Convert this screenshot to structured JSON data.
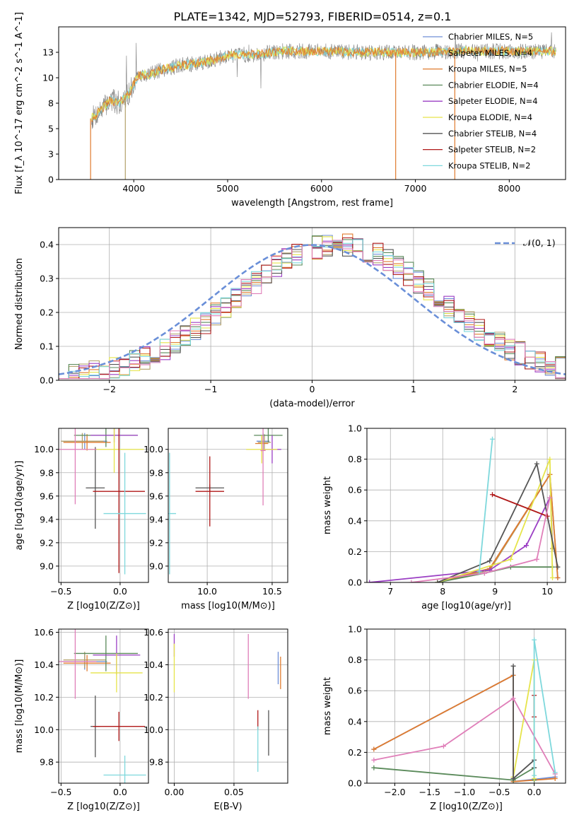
{
  "figure_title": "PLATE=1342, MJD=52793, FIBERID=0514, z=0.1",
  "colors": {
    "Chabrier MILES": "#6f8fd6",
    "Salpeter MILES": "#b2a06a",
    "Kroupa MILES": "#e07b2e",
    "Chabrier ELODIE": "#5a8a5a",
    "Salpeter ELODIE": "#9b3fc4",
    "Kroupa ELODIE": "#e6e44a",
    "Chabrier STELIB": "#555555",
    "Salpeter STELIB": "#b01818",
    "Kroupa STELIB": "#7ed8dc",
    "data": "#7f7f7f",
    "normal": "#6a8fd8",
    "pinkish": "#e07fb9"
  },
  "chart_data": [
    {
      "id": "spectrum",
      "type": "line",
      "xlabel": "wavelength [Angstrom, rest frame]",
      "ylabel": "Flux [f_λ 10^-17 erg cm^-2 s^-1 A^-1]",
      "xlim": [
        3200,
        8600
      ],
      "ylim": [
        0,
        15
      ],
      "xticks": [
        4000,
        5000,
        6000,
        7000,
        8000
      ],
      "yticks": [
        0.0,
        2.5,
        5.0,
        7.5,
        10.0,
        12.5
      ],
      "grid": false,
      "legend_position": "right",
      "envelope": {
        "x": [
          3550,
          3650,
          3750,
          3850,
          3950,
          4050,
          4150,
          4300,
          4500,
          4800,
          5000,
          5300,
          5600,
          6000,
          6500,
          7000,
          7500,
          8000,
          8500
        ],
        "y": [
          6.0,
          6.8,
          7.8,
          7.5,
          8.5,
          10.2,
          10.3,
          10.8,
          11.2,
          11.6,
          12.2,
          12.3,
          12.6,
          12.6,
          12.5,
          12.5,
          12.6,
          12.6,
          12.6
        ]
      },
      "legend": [
        {
          "name": "Chabrier MILES, N_SSP=5",
          "key": "Chabrier MILES"
        },
        {
          "name": "Salpeter MILES, N_SSP=4",
          "key": "Salpeter MILES"
        },
        {
          "name": "Kroupa MILES, N_SSP=5",
          "key": "Kroupa MILES"
        },
        {
          "name": "Chabrier ELODIE, N_SSP=4",
          "key": "Chabrier ELODIE"
        },
        {
          "name": "Salpeter ELODIE, N_SSP=4",
          "key": "Salpeter ELODIE"
        },
        {
          "name": "Kroupa ELODIE, N_SSP=4",
          "key": "Kroupa ELODIE"
        },
        {
          "name": "Chabrier STELIB, N_SSP=4",
          "key": "Chabrier STELIB"
        },
        {
          "name": "Salpeter STELIB, N_SSP=2",
          "key": "Salpeter STELIB"
        },
        {
          "name": "Kroupa STELIB, N_SSP=2",
          "key": "Kroupa STELIB"
        }
      ]
    },
    {
      "id": "residuals",
      "type": "line",
      "xlabel": "(data-model)/error",
      "ylabel": "Normed distribution",
      "xlim": [
        -2.5,
        2.5
      ],
      "ylim": [
        0,
        0.45
      ],
      "xticks": [
        -2,
        -1,
        0,
        1,
        2
      ],
      "yticks": [
        0.0,
        0.1,
        0.2,
        0.3,
        0.4
      ],
      "grid": true,
      "legend_position": "top-right",
      "legend": [
        {
          "name": "𝒩(0, 1)",
          "key": "normal"
        }
      ],
      "bin_width": 0.1
    },
    {
      "id": "age_vs_Z",
      "type": "scatter",
      "xlabel": "Z [log10(Z/Z⊙)]",
      "ylabel": "age  [log10(age/yr)]",
      "xlim": [
        -0.52,
        0.24
      ],
      "ylim": [
        8.86,
        10.18
      ],
      "xticks": [
        -0.5,
        0.0
      ],
      "yticks": [
        9.0,
        9.2,
        9.4,
        9.6,
        9.8,
        10.0
      ],
      "grid": true,
      "points": [
        {
          "key": "Chabrier MILES",
          "x": -0.3,
          "y": 10.07,
          "xerr": 0.19,
          "yerr": 0.07
        },
        {
          "key": "Salpeter MILES",
          "x": -0.32,
          "y": 10.07,
          "xerr": 0.18,
          "yerr": 0.07
        },
        {
          "key": "Kroupa MILES",
          "x": -0.28,
          "y": 10.06,
          "xerr": 0.2,
          "yerr": 0.07
        },
        {
          "key": "Chabrier ELODIE",
          "x": -0.12,
          "y": 10.12,
          "xerr": 0.27,
          "yerr": 0.1
        },
        {
          "key": "Salpeter ELODIE",
          "x": -0.05,
          "y": 10.12,
          "xerr": 0.2,
          "yerr": 0.06
        },
        {
          "key": "Kroupa ELODIE",
          "x": -0.05,
          "y": 10.0,
          "xerr": 0.25,
          "yerr": 0.2
        },
        {
          "key": "Chabrier STELIB",
          "x": -0.21,
          "y": 9.67,
          "xerr": 0.08,
          "yerr": 0.35
        },
        {
          "key": "Salpeter STELIB",
          "x": -0.01,
          "y": 9.64,
          "xerr": 0.22,
          "yerr": 0.7
        },
        {
          "key": "pinkish",
          "x": -0.38,
          "y": 10.0,
          "xerr": 0.18,
          "yerr": 0.47
        },
        {
          "key": "Kroupa STELIB",
          "x": 0.04,
          "y": 9.45,
          "xerr": 0.18,
          "yerr": 0.52
        }
      ]
    },
    {
      "id": "age_vs_mass",
      "type": "scatter",
      "xlabel": "mass [log10(M/M⊙)]",
      "ylabel": "",
      "xlim": [
        9.7,
        10.62
      ],
      "ylim": [
        8.86,
        10.18
      ],
      "xticks": [
        10.0,
        10.5
      ],
      "yticks": [
        9.0,
        9.2,
        9.4,
        9.6,
        9.8,
        10.0
      ],
      "grid": true,
      "points": [
        {
          "key": "Chabrier MILES",
          "x": 10.43,
          "y": 10.07,
          "xerr": 0.05,
          "yerr": 0.07
        },
        {
          "key": "Salpeter MILES",
          "x": 10.44,
          "y": 10.06,
          "xerr": 0.05,
          "yerr": 0.07
        },
        {
          "key": "Kroupa MILES",
          "x": 10.42,
          "y": 10.05,
          "xerr": 0.05,
          "yerr": 0.07
        },
        {
          "key": "Chabrier ELODIE",
          "x": 10.47,
          "y": 10.12,
          "xerr": 0.11,
          "yerr": 0.06
        },
        {
          "key": "Salpeter ELODIE",
          "x": 10.5,
          "y": 10.0,
          "xerr": 0.07,
          "yerr": 0.12
        },
        {
          "key": "Kroupa ELODIE",
          "x": 10.42,
          "y": 10.0,
          "xerr": 0.12,
          "yerr": 0.12
        },
        {
          "key": "Chabrier STELIB",
          "x": 10.02,
          "y": 9.67,
          "xerr": 0.11,
          "yerr": 0.03
        },
        {
          "key": "Salpeter STELIB",
          "x": 10.02,
          "y": 9.64,
          "xerr": 0.11,
          "yerr": 0.3
        },
        {
          "key": "pinkish",
          "x": 10.43,
          "y": 9.99,
          "xerr": 0.02,
          "yerr": 0.47
        },
        {
          "key": "Kroupa STELIB",
          "x": 9.71,
          "y": 9.45,
          "xerr": 0.05,
          "yerr": 0.52
        }
      ]
    },
    {
      "id": "mass_weight_vs_age",
      "type": "line",
      "xlabel": "age  [log10(age/yr)]",
      "ylabel": "mass weight",
      "xlim": [
        6.55,
        10.35
      ],
      "ylim": [
        0,
        1.0
      ],
      "xticks": [
        7,
        8,
        9,
        10
      ],
      "yticks": [
        0.0,
        0.2,
        0.4,
        0.6,
        0.8,
        1.0
      ],
      "grid": true,
      "series": [
        {
          "key": "Chabrier MILES",
          "x": [
            7.9,
            8.9,
            10.05,
            10.2
          ],
          "y": [
            0.0,
            0.09,
            0.7,
            0.03
          ]
        },
        {
          "key": "Salpeter MILES",
          "x": [
            7.9,
            8.9,
            10.05,
            10.1
          ],
          "y": [
            0.0,
            0.08,
            0.7,
            0.22
          ]
        },
        {
          "key": "Kroupa MILES",
          "x": [
            7.9,
            8.9,
            10.05,
            10.2
          ],
          "y": [
            0.0,
            0.09,
            0.7,
            0.03
          ]
        },
        {
          "key": "Chabrier ELODIE",
          "x": [
            7.9,
            8.8,
            9.3,
            10.1
          ],
          "y": [
            0.0,
            0.06,
            0.1,
            0.1
          ]
        },
        {
          "key": "Salpeter ELODIE",
          "x": [
            6.6,
            8.9,
            9.6,
            10.05
          ],
          "y": [
            0.0,
            0.08,
            0.24,
            0.55
          ]
        },
        {
          "key": "Kroupa ELODIE",
          "x": [
            7.9,
            9.3,
            10.05,
            10.1
          ],
          "y": [
            0.0,
            0.15,
            0.8,
            0.03
          ]
        },
        {
          "key": "Chabrier STELIB",
          "x": [
            7.9,
            8.9,
            9.8,
            10.2
          ],
          "y": [
            0.0,
            0.14,
            0.77,
            0.1
          ]
        },
        {
          "key": "Salpeter STELIB",
          "x": [
            8.95,
            10.0
          ],
          "y": [
            0.57,
            0.43
          ]
        },
        {
          "key": "pinkish",
          "x": [
            7.4,
            8.8,
            9.8,
            10.05
          ],
          "y": [
            0.0,
            0.06,
            0.15,
            0.55
          ]
        },
        {
          "key": "Kroupa STELIB",
          "x": [
            8.7,
            8.95
          ],
          "y": [
            0.07,
            0.93
          ]
        }
      ]
    },
    {
      "id": "mass_vs_Z",
      "type": "scatter",
      "xlabel": "Z [log10(Z/Z⊙)]",
      "ylabel": "mass [log10(M/M⊙)]",
      "xlim": [
        -0.52,
        0.24
      ],
      "ylim": [
        9.67,
        10.62
      ],
      "xticks": [
        -0.5,
        0.0
      ],
      "yticks": [
        9.8,
        10.0,
        10.2,
        10.4,
        10.6
      ],
      "grid": true,
      "points": [
        {
          "key": "Chabrier MILES",
          "x": -0.3,
          "y": 10.42,
          "xerr": 0.19,
          "yerr": 0.05
        },
        {
          "key": "Salpeter MILES",
          "x": -0.3,
          "y": 10.43,
          "xerr": 0.18,
          "yerr": 0.05
        },
        {
          "key": "Kroupa MILES",
          "x": -0.28,
          "y": 10.41,
          "xerr": 0.2,
          "yerr": 0.05
        },
        {
          "key": "Chabrier ELODIE",
          "x": -0.12,
          "y": 10.47,
          "xerr": 0.27,
          "yerr": 0.11
        },
        {
          "key": "Salpeter ELODIE",
          "x": -0.03,
          "y": 10.46,
          "xerr": 0.2,
          "yerr": 0.12
        },
        {
          "key": "Kroupa ELODIE",
          "x": -0.03,
          "y": 10.35,
          "xerr": 0.22,
          "yerr": 0.12
        },
        {
          "key": "Chabrier STELIB",
          "x": -0.21,
          "y": 10.02,
          "xerr": 0.04,
          "yerr": 0.19
        },
        {
          "key": "Salpeter STELIB",
          "x": -0.01,
          "y": 10.02,
          "xerr": 0.22,
          "yerr": 0.09
        },
        {
          "key": "pinkish",
          "x": -0.38,
          "y": 10.42,
          "xerr": 0.18,
          "yerr": 0.23
        },
        {
          "key": "Kroupa STELIB",
          "x": 0.04,
          "y": 9.72,
          "xerr": 0.18,
          "yerr": 0.12
        }
      ]
    },
    {
      "id": "mass_vs_EBV",
      "type": "scatter",
      "xlabel": "E(B-V)",
      "ylabel": "",
      "xlim": [
        -0.005,
        0.095
      ],
      "ylim": [
        9.67,
        10.62
      ],
      "xticks": [
        0.0,
        0.05
      ],
      "yticks": [
        9.8,
        10.0,
        10.2,
        10.4,
        10.6
      ],
      "grid": true,
      "points": [
        {
          "key": "Chabrier MILES",
          "x": 0.087,
          "y": 10.38,
          "xerr": 0,
          "yerr": 0.1
        },
        {
          "key": "Kroupa MILES",
          "x": 0.089,
          "y": 10.35,
          "xerr": 0,
          "yerr": 0.1
        },
        {
          "key": "Salpeter ELODIE",
          "x": 0.0,
          "y": 10.52,
          "xerr": 0,
          "yerr": 0.07
        },
        {
          "key": "Kroupa ELODIE",
          "x": 0.0,
          "y": 10.38,
          "xerr": 0,
          "yerr": 0.15
        },
        {
          "key": "Chabrier STELIB",
          "x": 0.079,
          "y": 9.98,
          "xerr": 0,
          "yerr": 0.14
        },
        {
          "key": "Salpeter STELIB",
          "x": 0.07,
          "y": 10.06,
          "xerr": 0,
          "yerr": 0.06
        },
        {
          "key": "pinkish",
          "x": 0.062,
          "y": 10.39,
          "xerr": 0,
          "yerr": 0.2
        },
        {
          "key": "Kroupa STELIB",
          "x": 0.07,
          "y": 9.88,
          "xerr": 0,
          "yerr": 0.14
        }
      ]
    },
    {
      "id": "mass_weight_vs_Z",
      "type": "line",
      "xlabel": "Z [log10(Z/Z⊙)]",
      "ylabel": "mass weight",
      "xlim": [
        -2.4,
        0.45
      ],
      "ylim": [
        0,
        1.0
      ],
      "xticks": [
        -2.0,
        -1.5,
        -1.0,
        -0.5,
        0.0
      ],
      "yticks": [
        0.0,
        0.2,
        0.4,
        0.6,
        0.8,
        1.0
      ],
      "grid": true,
      "series": [
        {
          "key": "Chabrier MILES",
          "x": [
            -2.3,
            -0.3,
            -0.3,
            0.3
          ],
          "y": [
            0.22,
            0.7,
            0.01,
            0.04
          ]
        },
        {
          "key": "Kroupa MILES",
          "x": [
            -2.3,
            -0.3,
            -0.3,
            0.3
          ],
          "y": [
            0.22,
            0.7,
            0.01,
            0.03
          ]
        },
        {
          "key": "Chabrier ELODIE",
          "x": [
            -2.3,
            -0.3,
            0.0,
            0.0
          ],
          "y": [
            0.1,
            0.02,
            0.1,
            0.02
          ]
        },
        {
          "key": "Kroupa ELODIE",
          "x": [
            -0.3,
            0.0,
            0.0
          ],
          "y": [
            0.04,
            0.8,
            0.03
          ]
        },
        {
          "key": "Chabrier STELIB",
          "x": [
            -0.3,
            -0.3,
            0.0,
            0.0
          ],
          "y": [
            0.76,
            0.03,
            0.15,
            0.1
          ]
        },
        {
          "key": "Salpeter STELIB",
          "x": [
            0.0,
            0.0
          ],
          "y": [
            0.57,
            0.43
          ]
        },
        {
          "key": "pinkish",
          "x": [
            -2.3,
            -1.3,
            -0.3,
            0.3
          ],
          "y": [
            0.15,
            0.24,
            0.55,
            0.06
          ]
        },
        {
          "key": "Kroupa STELIB",
          "x": [
            0.0,
            0.0,
            0.3
          ],
          "y": [
            0.05,
            0.93,
            0.07
          ]
        }
      ]
    }
  ]
}
